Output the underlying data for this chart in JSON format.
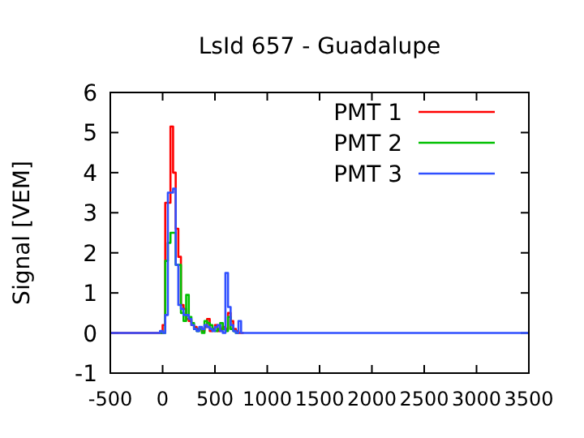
{
  "chart_data": {
    "type": "step",
    "title": "LsId 657 - Guadalupe",
    "ylabel": "Signal [VEM]",
    "x": [
      -500,
      -50,
      -25,
      0,
      25,
      50,
      75,
      100,
      125,
      150,
      175,
      200,
      225,
      250,
      275,
      300,
      325,
      350,
      375,
      400,
      425,
      450,
      475,
      500,
      525,
      550,
      575,
      600,
      625,
      650,
      675,
      700,
      725,
      750,
      775,
      800,
      825,
      3500
    ],
    "series": [
      {
        "name": "PMT 1",
        "color": "#ff0000",
        "values": [
          0,
          0,
          0,
          0.2,
          3.25,
          3.25,
          5.15,
          4.0,
          2.6,
          1.9,
          0.7,
          0.6,
          0.35,
          0.3,
          0.2,
          0.15,
          0.1,
          0.1,
          0.05,
          0.15,
          0.35,
          0.05,
          0.1,
          0.2,
          0.05,
          0.1,
          0.15,
          0.1,
          0.5,
          0.3,
          0.1,
          0.05,
          0,
          0,
          0,
          null,
          null,
          null
        ]
      },
      {
        "name": "PMT 2",
        "color": "#00c000",
        "values": [
          null,
          null,
          0,
          0,
          1.8,
          2.25,
          2.5,
          2.5,
          1.7,
          1.7,
          0.5,
          0.3,
          0.95,
          0.4,
          0.25,
          0.1,
          0.05,
          0.1,
          0,
          0.3,
          0.25,
          0.2,
          0.1,
          0.05,
          0.1,
          0.25,
          0.1,
          0.05,
          0.4,
          0.1,
          0.05,
          0,
          0,
          null,
          null,
          null,
          null,
          null
        ]
      },
      {
        "name": "PMT 3",
        "color": "#3050ff",
        "values": [
          0,
          0,
          0.05,
          0,
          0.45,
          3.5,
          3.5,
          3.6,
          1.7,
          0.7,
          0.6,
          0.45,
          0.45,
          0.35,
          0.2,
          0.1,
          0.05,
          0.15,
          0.1,
          0.2,
          0.15,
          0.1,
          0.05,
          0.15,
          0.2,
          0.05,
          0,
          1.5,
          0.65,
          0.2,
          0.05,
          0,
          0.3,
          0,
          0,
          0,
          0,
          0
        ]
      }
    ],
    "xlim": [
      -500,
      3500
    ],
    "xticks": [
      -500,
      0,
      500,
      1000,
      1500,
      2000,
      2500,
      3000,
      3500
    ],
    "ylim": [
      -1,
      6
    ],
    "yticks": [
      -1,
      0,
      1,
      2,
      3,
      4,
      5,
      6
    ],
    "legend": "top right",
    "line_style": "solid"
  }
}
